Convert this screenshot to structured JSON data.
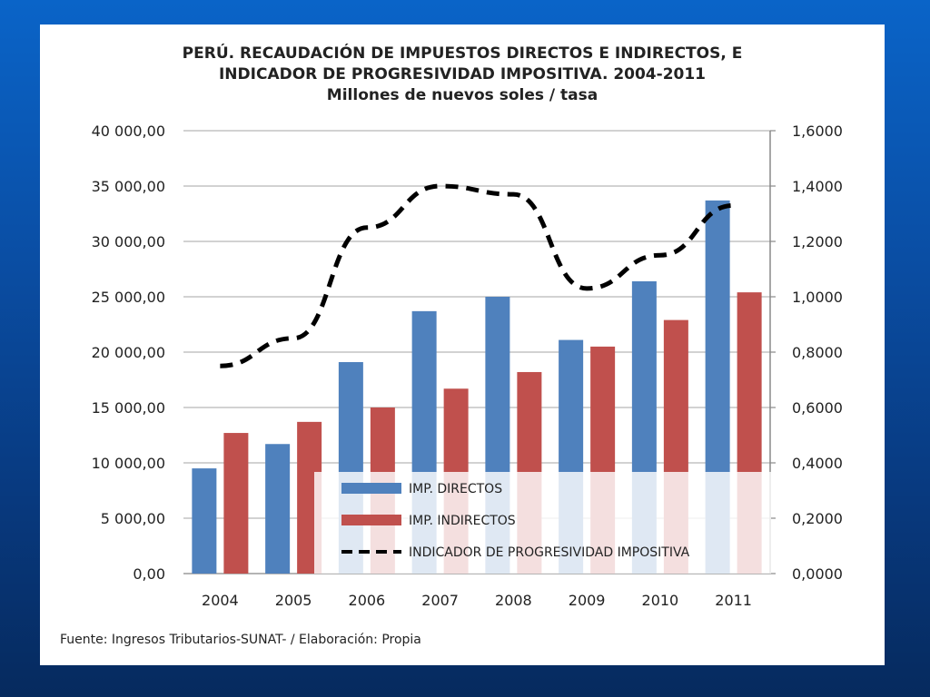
{
  "chart_data": {
    "type": "bar",
    "title": [
      "PERÚ. RECAUDACIÓN DE IMPUESTOS DIRECTOS E INDIRECTOS, E",
      "INDICADOR DE PROGRESIVIDAD IMPOSITIVA. 2004-2011",
      "Millones de nuevos soles / tasa"
    ],
    "categories": [
      "2004",
      "2005",
      "2006",
      "2007",
      "2008",
      "2009",
      "2010",
      "2011"
    ],
    "series": [
      {
        "name": "IMP. DIRECTOS",
        "type": "bar",
        "axis": "left",
        "color": "#4f81bd",
        "values": [
          9500,
          11700,
          19100,
          23700,
          25000,
          21100,
          26400,
          33700
        ]
      },
      {
        "name": "IMP. INDIRECTOS",
        "type": "bar",
        "axis": "left",
        "color": "#c0504d",
        "values": [
          12700,
          13700,
          15000,
          16700,
          18200,
          20500,
          22900,
          25400
        ]
      },
      {
        "name": "INDICADOR DE PROGRESIVIDAD IMPOSITIVA",
        "type": "line",
        "style": "dashed",
        "axis": "right",
        "color": "#000000",
        "values": [
          0.75,
          0.85,
          1.25,
          1.4,
          1.37,
          1.03,
          1.15,
          1.33
        ]
      }
    ],
    "y_left": {
      "range": [
        0,
        40000
      ],
      "ticks": [
        "0,00",
        "5 000,00",
        "10 000,00",
        "15 000,00",
        "20 000,00",
        "25 000,00",
        "30 000,00",
        "35 000,00",
        "40 000,00"
      ]
    },
    "y_right": {
      "range": [
        0,
        1.6
      ],
      "ticks": [
        "0,0000",
        "0,2000",
        "0,4000",
        "0,6000",
        "0,8000",
        "1,0000",
        "1,2000",
        "1,4000",
        "1,6000"
      ]
    },
    "grid": true,
    "legend": "bottom-right",
    "source": "Fuente: Ingresos Tributarios-SUNAT- / Elaboración: Propia"
  }
}
